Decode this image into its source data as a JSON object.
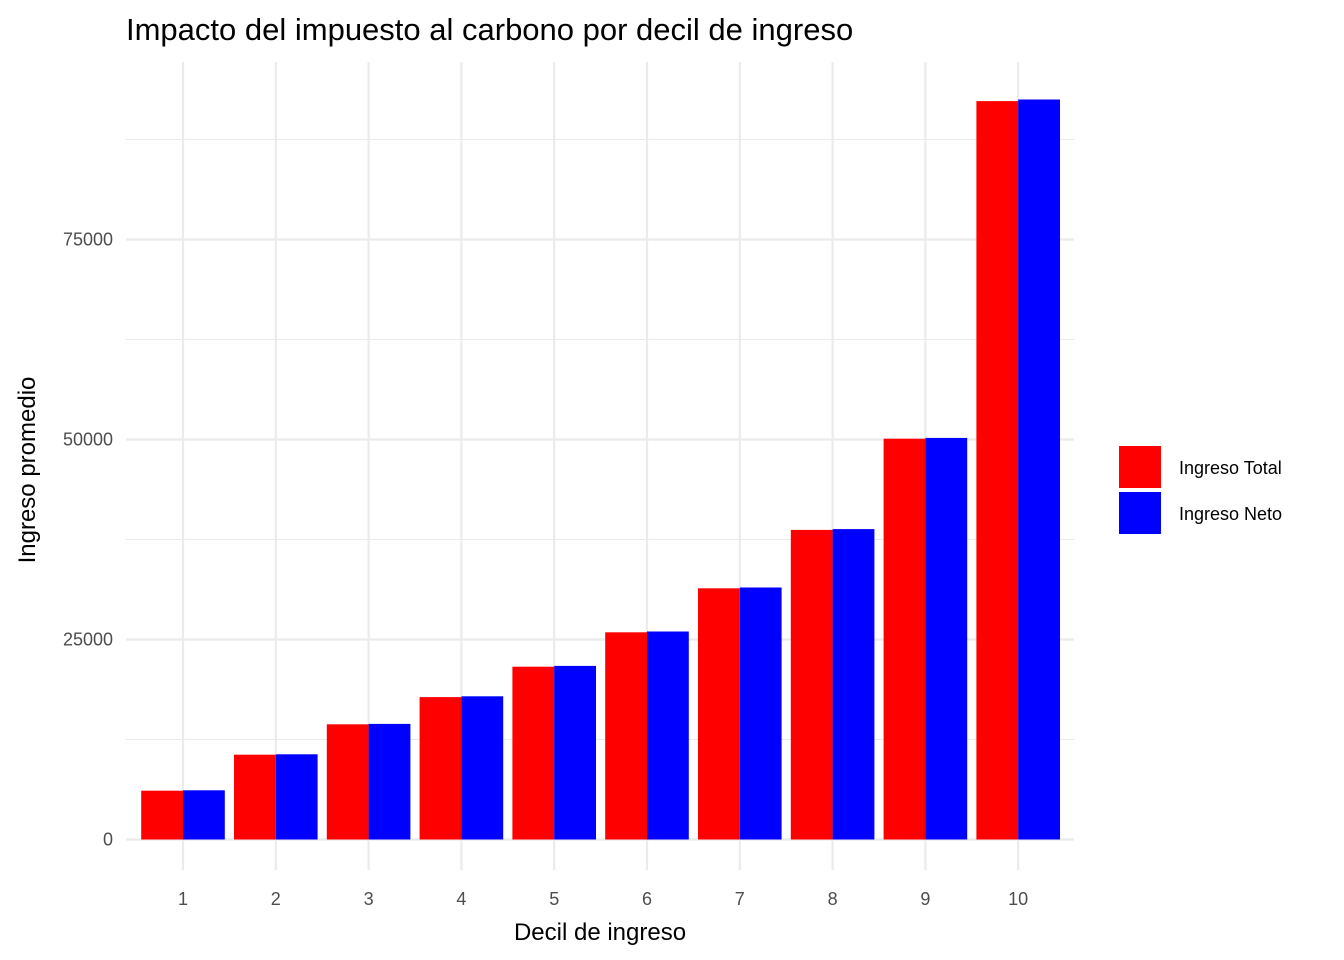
{
  "chart_data": {
    "type": "bar",
    "title": "Impacto del impuesto al carbono por decil de ingreso",
    "xlabel": "Decil de ingreso",
    "ylabel": "Ingreso promedio",
    "categories": [
      "1",
      "2",
      "3",
      "4",
      "5",
      "6",
      "7",
      "8",
      "9",
      "10"
    ],
    "series": [
      {
        "name": "Ingreso Total",
        "color": "#ff0000",
        "values": [
          6100,
          10600,
          14400,
          17800,
          21600,
          25900,
          31400,
          38700,
          50100,
          92300
        ]
      },
      {
        "name": "Ingreso Neto",
        "color": "#0000ff",
        "values": [
          6150,
          10650,
          14450,
          17900,
          21700,
          26000,
          31500,
          38800,
          50200,
          92500
        ]
      }
    ],
    "ylim": [
      0,
      97400
    ],
    "yticks": [
      0,
      25000,
      50000,
      75000
    ],
    "yticklabels": [
      "0",
      "25000",
      "50000",
      "75000"
    ],
    "grid": true,
    "legend_position": "right"
  }
}
